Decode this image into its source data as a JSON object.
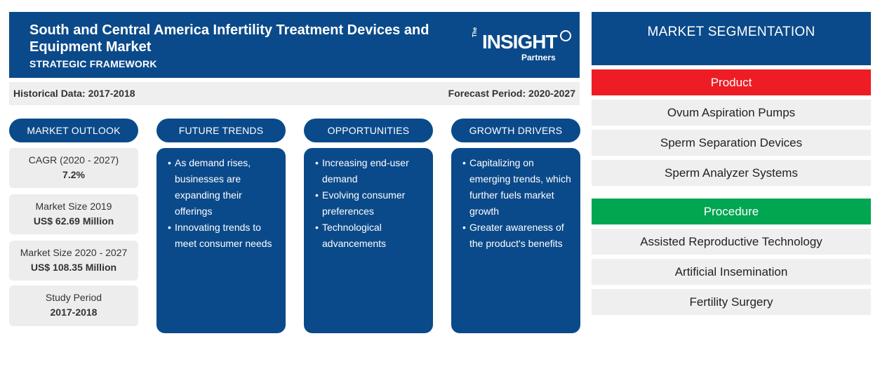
{
  "header": {
    "title": "South and Central America Infertility Treatment Devices and Equipment Market",
    "subtitle": "STRATEGIC FRAMEWORK",
    "logo": {
      "the": "The",
      "main": "INSIGHT",
      "partners": "Partners"
    }
  },
  "periods": {
    "historical": "Historical Data: 2017-2018",
    "forecast": "Forecast Period: 2020-2027"
  },
  "columns": {
    "outlook": "MARKET OUTLOOK",
    "trends": "FUTURE TRENDS",
    "opportunities": "OPPORTUNITIES",
    "drivers": "GROWTH DRIVERS"
  },
  "outlook": [
    {
      "label": "CAGR (2020 - 2027)",
      "value": "7.2%"
    },
    {
      "label": "Market Size 2019",
      "value": "US$ 62.69 Million"
    },
    {
      "label": "Market Size 2020 - 2027",
      "value": "US$ 108.35 Million"
    },
    {
      "label": "Study Period",
      "value": "2017-2018"
    }
  ],
  "trends": [
    "As demand rises, businesses are expanding their offerings",
    "Innovating trends to meet consumer needs"
  ],
  "opportunities": [
    "Increasing end-user demand",
    "Evolving consumer preferences",
    "Technological advancements"
  ],
  "drivers": [
    "Capitalizing on emerging trends, which further fuels market growth",
    "Greater awareness of the product's benefits"
  ],
  "segmentation": {
    "title": "MARKET SEGMENTATION",
    "product": {
      "label": "Product",
      "color": "#ee1c25",
      "items": [
        "Ovum Aspiration Pumps",
        "Sperm Separation Devices",
        "Sperm Analyzer Systems"
      ]
    },
    "procedure": {
      "label": "Procedure",
      "color": "#00a651",
      "items": [
        "Assisted Reproductive Technology",
        "Artificial Insemination",
        "Fertility Surgery"
      ]
    }
  },
  "colors": {
    "primary": "#0b4a8a",
    "panel": "#efefef"
  }
}
